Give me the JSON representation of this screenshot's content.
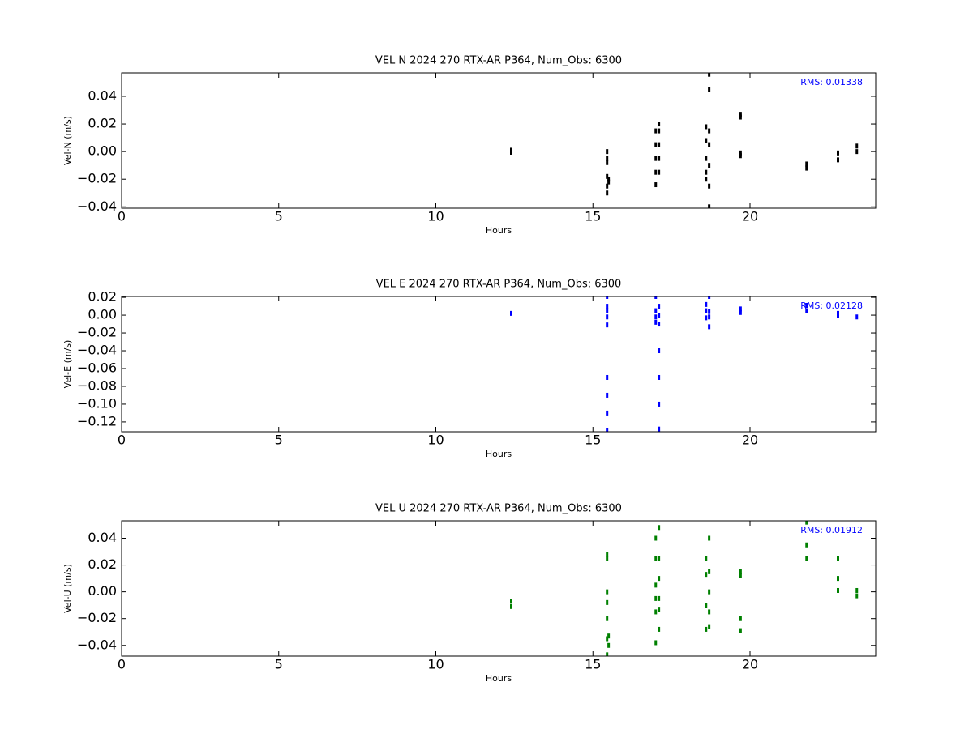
{
  "chart_data": [
    {
      "type": "scatter",
      "title": "VEL N 2024 270 RTX-AR  P364, Num_Obs: 6300",
      "xlabel": "Hours",
      "ylabel": "Vel-N (m/s)",
      "annotation": "RMS:  0.01338",
      "xlim": [
        0,
        24
      ],
      "xticks": [
        0,
        5,
        10,
        15,
        20
      ],
      "ylim": [
        -0.041,
        0.057
      ],
      "yticks": [
        {
          "value": -0.04,
          "label": "−0.04"
        },
        {
          "value": -0.02,
          "label": "−0.02"
        },
        {
          "value": 0,
          "label": "0.00"
        },
        0.02,
        0.04
      ],
      "series": [
        {
          "color": "#000000",
          "x": [
            12.4,
            12.4,
            15.45,
            15.45,
            15.45,
            15.45,
            15.45,
            15.45,
            15.5,
            15.5,
            17.0,
            17.0,
            17.0,
            17.0,
            17.0,
            17.1,
            17.1,
            17.1,
            17.1,
            17.1,
            18.6,
            18.6,
            18.6,
            18.6,
            18.6,
            18.7,
            18.7,
            18.7,
            18.7,
            18.7,
            18.7,
            18.7,
            19.7,
            19.7,
            19.7,
            19.7,
            21.8,
            21.8,
            22.8,
            22.8,
            23.4,
            23.4
          ],
          "values": [
            0.001,
            -0.0005,
            0.0,
            -0.005,
            -0.008,
            -0.018,
            -0.025,
            -0.03,
            -0.02,
            -0.022,
            0.015,
            0.005,
            -0.005,
            -0.015,
            -0.024,
            0.02,
            0.015,
            0.005,
            -0.005,
            -0.015,
            0.018,
            0.008,
            -0.005,
            -0.015,
            -0.02,
            0.056,
            0.045,
            0.015,
            0.005,
            -0.01,
            -0.025,
            -0.04,
            0.027,
            0.025,
            -0.001,
            -0.003,
            -0.009,
            -0.012,
            -0.001,
            -0.006,
            0.004,
            0.0
          ]
        }
      ]
    },
    {
      "type": "scatter",
      "title": "VEL E 2024 270 RTX-AR  P364, Num_Obs: 6300",
      "xlabel": "Hours",
      "ylabel": "Vel-E (m/s)",
      "annotation": "RMS:  0.02128",
      "xlim": [
        0,
        24
      ],
      "xticks": [
        0,
        5,
        10,
        15,
        20
      ],
      "ylim": [
        -0.131,
        0.021
      ],
      "yticks": [
        {
          "value": -0.12,
          "label": "−0.12"
        },
        {
          "value": -0.1,
          "label": "−0.10"
        },
        {
          "value": -0.08,
          "label": "−0.08"
        },
        {
          "value": -0.06,
          "label": "−0.06"
        },
        {
          "value": -0.04,
          "label": "−0.04"
        },
        {
          "value": -0.02,
          "label": "−0.02"
        },
        {
          "value": 0,
          "label": "0.00"
        },
        0.02
      ],
      "series": [
        {
          "color": "#0000ff",
          "x": [
            12.4,
            15.45,
            15.45,
            15.45,
            15.45,
            15.45,
            15.45,
            15.45,
            15.45,
            15.45,
            17.0,
            17.0,
            17.0,
            17.0,
            17.1,
            17.1,
            17.1,
            17.1,
            17.1,
            17.1,
            17.1,
            18.6,
            18.6,
            18.6,
            18.7,
            18.7,
            18.7,
            18.7,
            19.7,
            19.7,
            21.8,
            21.8,
            22.8,
            22.8,
            23.4
          ],
          "values": [
            0.002,
            0.021,
            0.01,
            0.005,
            -0.002,
            -0.011,
            -0.07,
            -0.09,
            -0.11,
            -0.13,
            0.021,
            0.005,
            -0.002,
            -0.008,
            0.01,
            0.0,
            -0.01,
            -0.04,
            -0.07,
            -0.1,
            -0.128,
            0.012,
            0.005,
            -0.003,
            0.021,
            0.004,
            -0.002,
            -0.013,
            0.007,
            0.003,
            0.011,
            0.005,
            0.002,
            0.0,
            -0.002
          ]
        }
      ]
    },
    {
      "type": "scatter",
      "title": "VEL U 2024 270 RTX-AR  P364, Num_Obs: 6300",
      "xlabel": "Hours",
      "ylabel": "Vel-U (m/s)",
      "annotation": "RMS:  0.01912",
      "xlim": [
        0,
        24
      ],
      "xticks": [
        0,
        5,
        10,
        15,
        20
      ],
      "ylim": [
        -0.048,
        0.053
      ],
      "yticks": [
        {
          "value": -0.04,
          "label": "−0.04"
        },
        {
          "value": -0.02,
          "label": "−0.02"
        },
        {
          "value": 0,
          "label": "0.00"
        },
        0.02,
        0.04
      ],
      "series": [
        {
          "color": "#008000",
          "x": [
            12.4,
            12.4,
            15.45,
            15.45,
            15.45,
            15.45,
            15.45,
            15.45,
            15.45,
            15.5,
            15.5,
            17.0,
            17.0,
            17.0,
            17.0,
            17.0,
            17.0,
            17.1,
            17.1,
            17.1,
            17.1,
            17.1,
            17.1,
            18.6,
            18.6,
            18.6,
            18.6,
            18.7,
            18.7,
            18.7,
            18.7,
            18.7,
            19.7,
            19.7,
            19.7,
            19.7,
            21.8,
            21.8,
            21.8,
            22.8,
            22.8,
            22.8,
            23.4,
            23.4
          ],
          "values": [
            -0.007,
            -0.011,
            0.028,
            0.025,
            0.0,
            -0.008,
            -0.02,
            -0.035,
            -0.047,
            -0.033,
            -0.04,
            0.04,
            0.025,
            0.005,
            -0.005,
            -0.015,
            -0.038,
            0.048,
            0.025,
            0.01,
            -0.005,
            -0.013,
            -0.028,
            0.025,
            0.013,
            -0.01,
            -0.028,
            0.04,
            0.015,
            0.0,
            -0.015,
            -0.026,
            0.015,
            0.012,
            -0.02,
            -0.029,
            0.052,
            0.035,
            0.025,
            0.025,
            0.01,
            0.001,
            0.001,
            -0.003
          ]
        }
      ]
    }
  ]
}
